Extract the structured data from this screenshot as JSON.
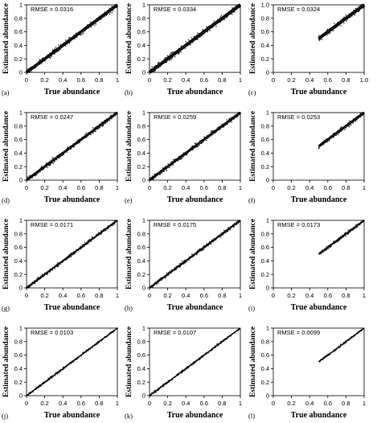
{
  "figure": {
    "xlabel": "True abundance",
    "ylabel": "Estimated abundance"
  },
  "chart_data": [
    {
      "type": "scatter",
      "panel_label": "(a)",
      "annotation": "RMSE = 0.0316",
      "xlabel": "True abundance",
      "ylabel": "Estimated abundance",
      "xlim": [
        0,
        1
      ],
      "ylim": [
        0,
        1
      ],
      "xticks": [
        "0",
        "0.2",
        "0.4",
        "0.6",
        "0.8",
        "1"
      ],
      "yticks": [
        "0",
        "0.2",
        "0.4",
        "0.6",
        "0.8",
        "1"
      ],
      "true_range": [
        0,
        1
      ],
      "spread": 0.042,
      "points": 400,
      "grid": false
    },
    {
      "type": "scatter",
      "panel_label": "(b)",
      "annotation": "RMSE = 0.0334",
      "xlabel": "True abundance",
      "ylabel": "Estimated abundance",
      "xlim": [
        0,
        1
      ],
      "ylim": [
        0,
        1
      ],
      "xticks": [
        "0",
        "0.2",
        "0.4",
        "0.6",
        "0.8",
        "1"
      ],
      "yticks": [
        "0",
        "0.2",
        "0.4",
        "0.6",
        "0.8",
        "1"
      ],
      "true_range": [
        0,
        1
      ],
      "spread": 0.045,
      "points": 400,
      "grid": false
    },
    {
      "type": "scatter",
      "panel_label": "(c)",
      "annotation": "RMSE = 0.0324",
      "xlabel": "True abundance",
      "ylabel": "Estimated abundance",
      "xlim": [
        0,
        1
      ],
      "ylim": [
        0,
        1
      ],
      "xticks": [
        "0",
        "0.2",
        "0.4",
        "0.6",
        "0.8",
        "1.0"
      ],
      "yticks": [
        "0",
        "0.2",
        "0.4",
        "0.6",
        "0.8",
        "1.0"
      ],
      "true_range": [
        0.5,
        1
      ],
      "spread": 0.045,
      "points": 200,
      "grid": false
    },
    {
      "type": "scatter",
      "panel_label": "(d)",
      "annotation": "RMSE = 0.0247",
      "xlabel": "True abundance",
      "ylabel": "Estimated abundance",
      "xlim": [
        0,
        1
      ],
      "ylim": [
        0,
        1
      ],
      "xticks": [
        "0",
        "0.2",
        "0.4",
        "0.6",
        "0.8",
        "1"
      ],
      "yticks": [
        "0",
        "0.2",
        "0.4",
        "0.6",
        "0.8",
        "1"
      ],
      "true_range": [
        0,
        1
      ],
      "spread": 0.033,
      "points": 400,
      "grid": false
    },
    {
      "type": "scatter",
      "panel_label": "(e)",
      "annotation": "RMSE = 0.0259",
      "xlabel": "True abundance",
      "ylabel": "Estimated abundance",
      "xlim": [
        0,
        1
      ],
      "ylim": [
        0,
        1
      ],
      "xticks": [
        "0",
        "0.2",
        "0.4",
        "0.6",
        "0.8",
        "1"
      ],
      "yticks": [
        "0",
        "0.2",
        "0.4",
        "0.6",
        "0.8",
        "1"
      ],
      "true_range": [
        0,
        1
      ],
      "spread": 0.035,
      "points": 400,
      "grid": false
    },
    {
      "type": "scatter",
      "panel_label": "(f)",
      "annotation": "RMSE = 0.0253",
      "xlabel": "True abundance",
      "ylabel": "Estimated abundance",
      "xlim": [
        0,
        1
      ],
      "ylim": [
        0,
        1
      ],
      "xticks": [
        "0",
        "0.2",
        "0.4",
        "0.6",
        "0.8",
        "1"
      ],
      "yticks": [
        "0",
        "0.2",
        "0.4",
        "0.6",
        "0.8",
        "1"
      ],
      "true_range": [
        0.5,
        1
      ],
      "spread": 0.035,
      "points": 200,
      "grid": false
    },
    {
      "type": "scatter",
      "panel_label": "(g)",
      "annotation": "RMSE = 0.0171",
      "xlabel": "True abundance",
      "ylabel": "Estimated abundance",
      "xlim": [
        0,
        1
      ],
      "ylim": [
        0,
        1
      ],
      "xticks": [
        "0",
        "0.2",
        "0.4",
        "0.6",
        "0.8",
        "1"
      ],
      "yticks": [
        "0",
        "0.2",
        "0.4",
        "0.6",
        "0.8",
        "1"
      ],
      "true_range": [
        0,
        1
      ],
      "spread": 0.024,
      "points": 400,
      "grid": false
    },
    {
      "type": "scatter",
      "panel_label": "(h)",
      "annotation": "RMSE = 0.0175",
      "xlabel": "True abundance",
      "ylabel": "Estimated abundance",
      "xlim": [
        0,
        1
      ],
      "ylim": [
        0,
        1
      ],
      "xticks": [
        "0",
        "0.2",
        "0.4",
        "0.6",
        "0.8",
        "1"
      ],
      "yticks": [
        "0",
        "0.2",
        "0.4",
        "0.6",
        "0.8",
        "1"
      ],
      "true_range": [
        0,
        1
      ],
      "spread": 0.025,
      "points": 400,
      "grid": false
    },
    {
      "type": "scatter",
      "panel_label": "(i)",
      "annotation": "RMSE = 0.0173",
      "xlabel": "True abundance",
      "ylabel": "Estimated abundance",
      "xlim": [
        0,
        1
      ],
      "ylim": [
        0,
        1
      ],
      "xticks": [
        "0",
        "0.2",
        "0.4",
        "0.6",
        "0.8",
        "1"
      ],
      "yticks": [
        "0",
        "0.2",
        "0.4",
        "0.6",
        "0.8",
        "1"
      ],
      "true_range": [
        0.5,
        1
      ],
      "spread": 0.025,
      "points": 200,
      "grid": false
    },
    {
      "type": "scatter",
      "panel_label": "(j)",
      "annotation": "RMSE = 0.0103",
      "xlabel": "True abundance",
      "ylabel": "Estimated abundance",
      "xlim": [
        0,
        1
      ],
      "ylim": [
        0,
        1
      ],
      "xticks": [
        "0",
        "0.2",
        "0.4",
        "0.6",
        "0.8",
        "1"
      ],
      "yticks": [
        "0",
        "0.2",
        "0.4",
        "0.6",
        "0.8",
        "1"
      ],
      "true_range": [
        0,
        1
      ],
      "spread": 0.015,
      "points": 400,
      "grid": false
    },
    {
      "type": "scatter",
      "panel_label": "(k)",
      "annotation": "RMSE = 0.0107",
      "xlabel": "True abundance",
      "ylabel": "Estimated abundance",
      "xlim": [
        0,
        1
      ],
      "ylim": [
        0,
        1
      ],
      "xticks": [
        "0",
        "0.2",
        "0.4",
        "0.6",
        "0.8",
        "1"
      ],
      "yticks": [
        "0",
        "0.2",
        "0.4",
        "0.6",
        "0.8",
        "1"
      ],
      "true_range": [
        0,
        1
      ],
      "spread": 0.015,
      "points": 400,
      "grid": false
    },
    {
      "type": "scatter",
      "panel_label": "(l)",
      "annotation": "RMSE = 0.0099",
      "xlabel": "True abundance",
      "ylabel": "Estimated abundance",
      "xlim": [
        0,
        1
      ],
      "ylim": [
        0,
        1
      ],
      "xticks": [
        "0",
        "0.2",
        "0.4",
        "0.6",
        "0.8",
        "1"
      ],
      "yticks": [
        "0",
        "0.2",
        "0.4",
        "0.6",
        "0.8",
        "1"
      ],
      "true_range": [
        0.5,
        1
      ],
      "spread": 0.014,
      "points": 200,
      "grid": false
    }
  ]
}
